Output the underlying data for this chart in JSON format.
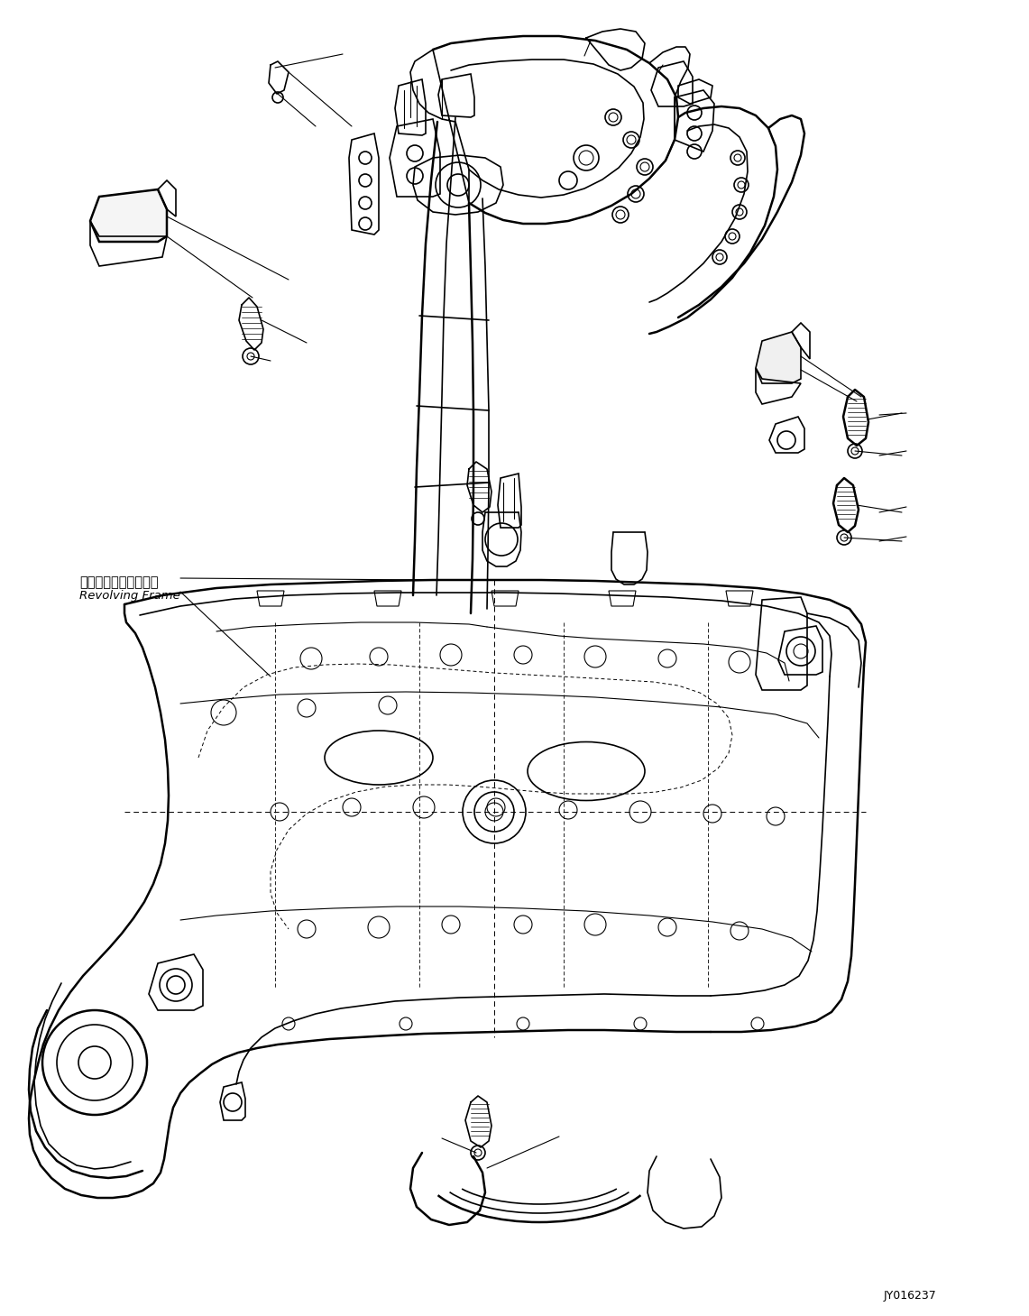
{
  "background_color": "#ffffff",
  "line_color": "#000000",
  "label_japanese": "レボルビングフレーム",
  "label_english": "Revolving Frame",
  "diagram_id": "JY016237",
  "fig_width": 11.41,
  "fig_height": 14.59,
  "dpi": 100
}
